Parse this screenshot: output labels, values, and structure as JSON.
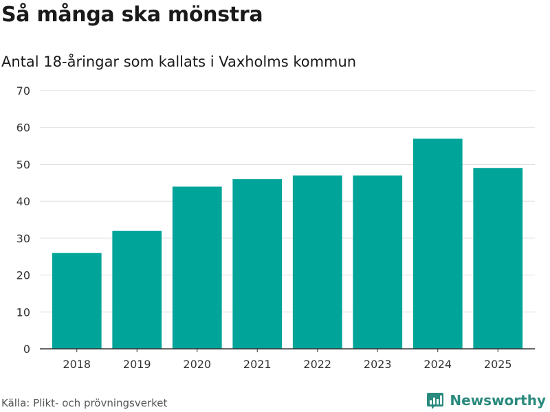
{
  "header": {
    "title": "Så många ska mönstra",
    "subtitle": "Antal 18-åringar som kallats i Vaxholms kommun"
  },
  "footer": {
    "source": "Källa: Plikt- och prövningsverket",
    "brand": "Newsworthy",
    "brand_icon": "bar-chart-logo-icon"
  },
  "colors": {
    "bar": "#00a499",
    "grid": "#dddddd",
    "axis": "#333333",
    "brand": "#2a8a7e"
  },
  "chart_data": {
    "type": "bar",
    "title": "Så många ska mönstra",
    "subtitle": "Antal 18-åringar som kallats i Vaxholms kommun",
    "xlabel": "",
    "ylabel": "",
    "categories": [
      "2018",
      "2019",
      "2020",
      "2021",
      "2022",
      "2023",
      "2024",
      "2025"
    ],
    "values": [
      26,
      32,
      44,
      46,
      47,
      47,
      57,
      49
    ],
    "ylim": [
      0,
      70
    ],
    "yticks": [
      0,
      10,
      20,
      30,
      40,
      50,
      60,
      70
    ],
    "grid": true,
    "legend": "none"
  }
}
